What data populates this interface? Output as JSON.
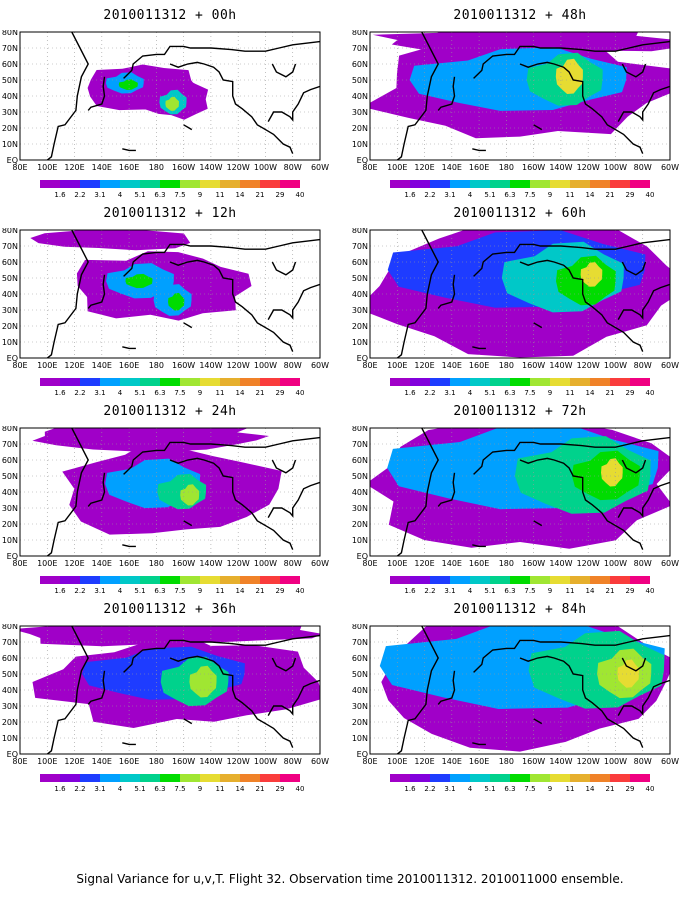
{
  "colors": {
    "scale": [
      "#a000c8",
      "#8200dc",
      "#1e3cff",
      "#00a0ff",
      "#00c8c8",
      "#00d28c",
      "#00dc00",
      "#a0e632",
      "#e6dc32",
      "#e6af2d",
      "#f08228",
      "#fa3c3c",
      "#f00082"
    ],
    "coast": "#000000",
    "grid": "#999999"
  },
  "chart_data": {
    "type": "heatmap",
    "caption": "Signal Variance for u,v,T. Flight 32. Observation time 2010011312. 2010011000 ensemble.",
    "colorbar_ticks": [
      "1.6",
      "2.2",
      "3.1",
      "4",
      "5.1",
      "6.3",
      "7.5",
      "9",
      "11",
      "14",
      "21",
      "29",
      "40"
    ],
    "x_tick_labels": [
      "80E",
      "100E",
      "120E",
      "140E",
      "160E",
      "180",
      "160W",
      "140W",
      "120W",
      "100W",
      "80W",
      "60W"
    ],
    "y_tick_labels": [
      "80N",
      "70N",
      "60N",
      "50N",
      "40N",
      "30N",
      "20N",
      "10N",
      "EQ"
    ],
    "lon_range": [
      80,
      300
    ],
    "lat_range": [
      0,
      80
    ],
    "panels": [
      {
        "title": "2010011312 + 00h",
        "level": 1
      },
      {
        "title": "2010011312 + 48h",
        "level": 5
      },
      {
        "title": "2010011312 + 12h",
        "level": 2
      },
      {
        "title": "2010011312 + 60h",
        "level": 6
      },
      {
        "title": "2010011312 + 24h",
        "level": 3
      },
      {
        "title": "2010011312 + 72h",
        "level": 7
      },
      {
        "title": "2010011312 + 36h",
        "level": 4
      },
      {
        "title": "2010011312 + 84h",
        "level": 8
      }
    ]
  }
}
